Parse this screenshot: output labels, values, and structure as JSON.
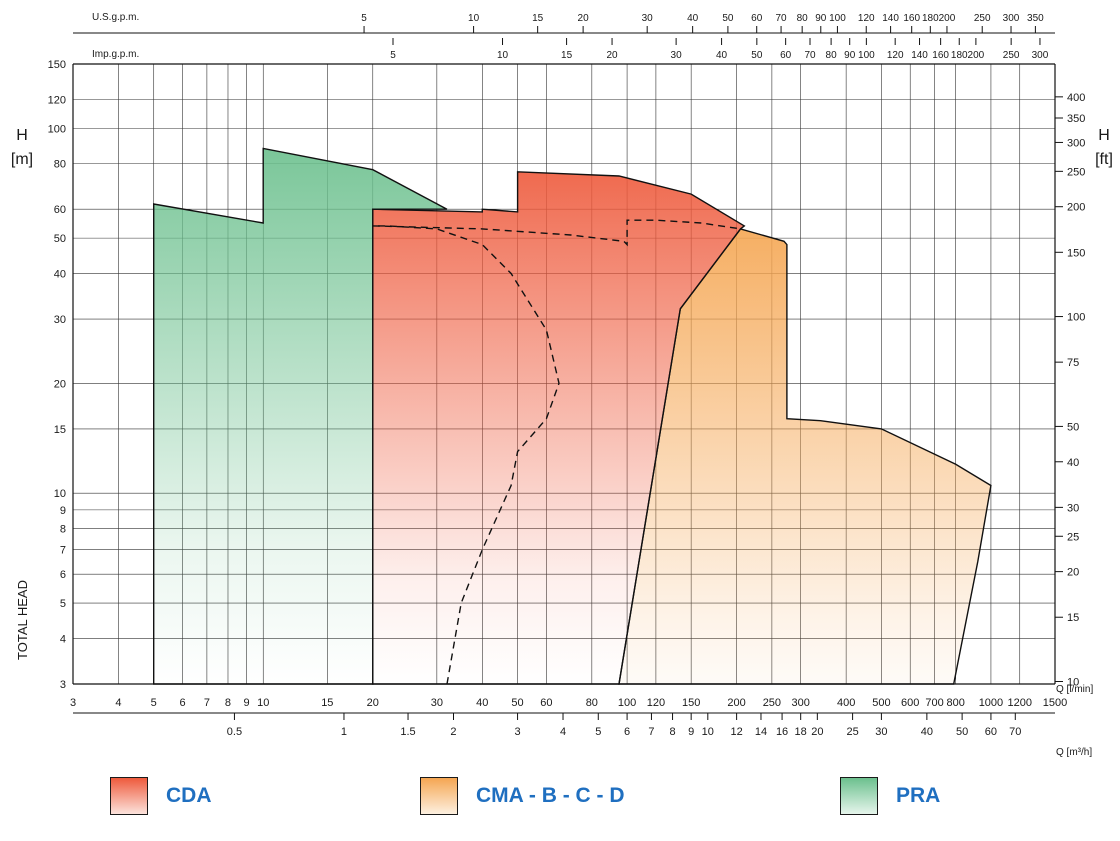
{
  "chart_data": {
    "type": "area",
    "x_scale": "log",
    "y_scale": "log",
    "xlim": [
      3,
      1500
    ],
    "ylim": [
      3,
      150
    ],
    "grid": true,
    "y_label_top": "H",
    "y_unit": "[m]",
    "y_label_side": "TOTAL HEAD",
    "y_right_label": "H",
    "y_right_unit": "[ft]",
    "x_label": "Q [l/min]",
    "x2_label": "Q [m³/h]",
    "top1_label": "U.S.g.p.m.",
    "top2_label": "Imp.g.p.m.",
    "x_ticks": [
      "3",
      "4",
      "5",
      "6",
      "7",
      "8",
      "9",
      "10",
      "15",
      "20",
      "30",
      "40",
      "50",
      "60",
      "80",
      "100",
      "120",
      "150",
      "200",
      "250",
      "300",
      "400",
      "500",
      "600",
      "700",
      "800",
      "1000",
      "1200",
      "1500"
    ],
    "y_ticks": [
      "3",
      "4",
      "5",
      "6",
      "7",
      "8",
      "9",
      "10",
      "15",
      "20",
      "30",
      "40",
      "50",
      "60",
      "80",
      "100",
      "120",
      "150"
    ],
    "y_right_ticks": [
      "10",
      "15",
      "20",
      "25",
      "30",
      "40",
      "50",
      "75",
      "100",
      "150",
      "200",
      "250",
      "300",
      "350",
      "400"
    ],
    "x2_ticks": [
      "0.5",
      "1",
      "1.5",
      "2",
      "3",
      "4",
      "5",
      "6",
      "7",
      "8",
      "9",
      "10",
      "12",
      "14",
      "16",
      "18",
      "20",
      "25",
      "30",
      "40",
      "50",
      "60",
      "70"
    ],
    "top1_ticks": [
      "5",
      "10",
      "15",
      "20",
      "30",
      "40",
      "50",
      "60",
      "70",
      "80",
      "90",
      "100",
      "120",
      "140",
      "160",
      "180",
      "200",
      "250",
      "300",
      "350"
    ],
    "top2_ticks": [
      "5",
      "10",
      "15",
      "20",
      "30",
      "40",
      "50",
      "60",
      "70",
      "80",
      "90",
      "100",
      "120",
      "140",
      "160",
      "180",
      "200",
      "250",
      "300"
    ],
    "series": [
      {
        "name": "PRA",
        "color": "#6cc08e",
        "points": [
          [
            5,
            3
          ],
          [
            5,
            62
          ],
          [
            10,
            55
          ],
          [
            10,
            88
          ],
          [
            20,
            77
          ],
          [
            32,
            60
          ],
          [
            20,
            60
          ],
          [
            20,
            3
          ]
        ]
      },
      {
        "name": "CDA",
        "color": "#ee5a3c",
        "points": [
          [
            20,
            3
          ],
          [
            20,
            60
          ],
          [
            40,
            59
          ],
          [
            40,
            60
          ],
          [
            50,
            59
          ],
          [
            50,
            76
          ],
          [
            95,
            74
          ],
          [
            150,
            66
          ],
          [
            210,
            54
          ],
          [
            205,
            53
          ],
          [
            140,
            32
          ],
          [
            95,
            3
          ]
        ]
      },
      {
        "name": "CMA - B - C - D",
        "color": "#f5a652",
        "points": [
          [
            95,
            3
          ],
          [
            140,
            32
          ],
          [
            205,
            53
          ],
          [
            270,
            49
          ],
          [
            275,
            48
          ],
          [
            275,
            16
          ],
          [
            340,
            15.8
          ],
          [
            500,
            15
          ],
          [
            800,
            12
          ],
          [
            1000,
            10.5
          ],
          [
            920,
            6.5
          ],
          [
            790,
            3
          ]
        ]
      },
      {
        "name": "dashed",
        "color": "#1a1a1a",
        "points": [
          [
            32,
            3
          ],
          [
            35,
            5
          ],
          [
            40,
            7
          ],
          [
            48,
            10.5
          ],
          [
            50,
            13
          ],
          [
            60,
            16
          ],
          [
            65,
            20
          ],
          [
            60,
            28
          ],
          [
            48,
            40
          ],
          [
            40,
            48
          ],
          [
            30,
            53
          ],
          [
            22,
            54
          ],
          [
            20,
            54
          ]
        ]
      },
      {
        "name": "dashed2",
        "color": "#1a1a1a",
        "points": [
          [
            20,
            54
          ],
          [
            40,
            53
          ],
          [
            70,
            51
          ],
          [
            98,
            49
          ],
          [
            100,
            48
          ],
          [
            100,
            56
          ],
          [
            120,
            56
          ],
          [
            160,
            55
          ],
          [
            205,
            53
          ]
        ]
      }
    ]
  },
  "legend": [
    {
      "label": "CDA",
      "color": "#ee5a3c"
    },
    {
      "label": "CMA - B - C - D",
      "color": "#f5a652"
    },
    {
      "label": "PRA",
      "color": "#6cc08e"
    }
  ]
}
